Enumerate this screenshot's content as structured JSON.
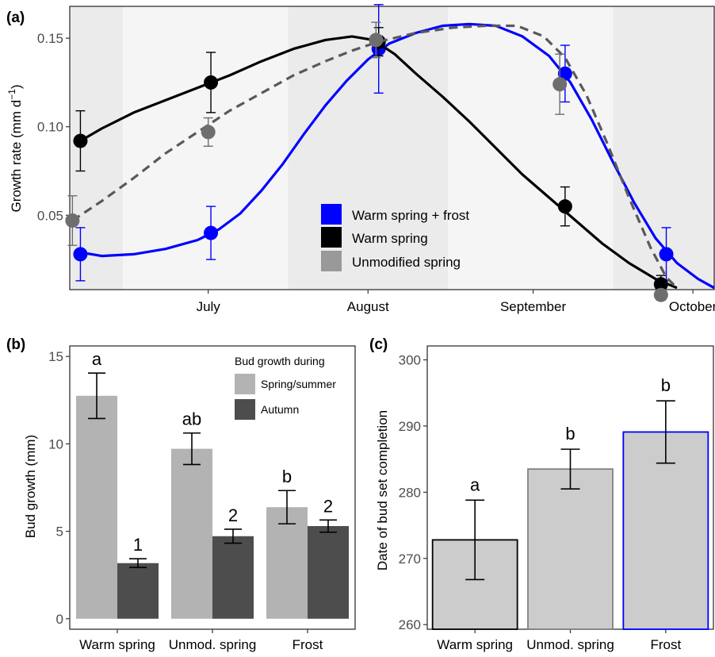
{
  "colors": {
    "warm_frost": "#0000ff",
    "warm": "#000000",
    "unmodified_line": "#595959",
    "unmodified_point": "#6e6e6e",
    "unmodified_legend": "#999999",
    "bar_spring": "#b3b3b3",
    "bar_autumn": "#4d4d4d",
    "bar_c_fill": "#cccccc",
    "band_dark": "#ebebeb",
    "band_light": "#f5f5f5"
  },
  "chart_data": [
    {
      "panel": "(a)",
      "type": "line",
      "title": "",
      "xlabel": "",
      "ylabel": "Growth rate (mm d",
      "ylabel_sup": "−1",
      "ylabel_end": ")",
      "x_tick_labels": [
        "July",
        "August",
        "September",
        "October"
      ],
      "x_ticks_days": [
        26,
        56,
        87,
        117
      ],
      "xlim_days": [
        0,
        121
      ],
      "ylim": [
        0.008,
        0.168
      ],
      "y_ticks": [
        "0.05",
        "0.10",
        "0.15"
      ],
      "y_tick_values": [
        0.05,
        0.1,
        0.15
      ],
      "background_bands": "alternating monthly shading",
      "legend_position": "lower-center",
      "series": [
        {
          "name": "Warm spring + frost",
          "color_key": "warm_frost",
          "style": "solid",
          "points": [
            {
              "x": 2.0,
              "y": 0.028,
              "err": 0.015
            },
            {
              "x": 26.5,
              "y": 0.04,
              "err": 0.015
            },
            {
              "x": 58.0,
              "y": 0.144,
              "err": 0.025
            },
            {
              "x": 93.0,
              "y": 0.13,
              "err": 0.016
            },
            {
              "x": 112.0,
              "y": 0.028,
              "err": 0.015
            }
          ],
          "curve": [
            [
              2,
              0.029
            ],
            [
              6,
              0.027
            ],
            [
              12,
              0.028
            ],
            [
              18,
              0.031
            ],
            [
              24,
              0.036
            ],
            [
              28,
              0.042
            ],
            [
              32,
              0.051
            ],
            [
              36,
              0.064
            ],
            [
              40,
              0.079
            ],
            [
              44,
              0.096
            ],
            [
              48,
              0.112
            ],
            [
              52,
              0.126
            ],
            [
              56,
              0.138
            ],
            [
              60,
              0.147
            ],
            [
              65,
              0.153
            ],
            [
              70,
              0.157
            ],
            [
              75,
              0.158
            ],
            [
              80,
              0.157
            ],
            [
              85,
              0.151
            ],
            [
              90,
              0.14
            ],
            [
              94,
              0.125
            ],
            [
              98,
              0.104
            ],
            [
              102,
              0.08
            ],
            [
              106,
              0.057
            ],
            [
              110,
              0.037
            ],
            [
              114,
              0.023
            ],
            [
              118,
              0.014
            ],
            [
              121,
              0.009
            ]
          ]
        },
        {
          "name": "Warm spring",
          "color_key": "warm",
          "style": "solid",
          "points": [
            {
              "x": 2.0,
              "y": 0.092,
              "err": 0.017
            },
            {
              "x": 26.5,
              "y": 0.125,
              "err": 0.017
            },
            {
              "x": 58.0,
              "y": 0.148,
              "err": 0.008
            },
            {
              "x": 93.0,
              "y": 0.055,
              "err": 0.011
            },
            {
              "x": 111.0,
              "y": 0.011,
              "err": 0.005
            }
          ],
          "curve": [
            [
              2,
              0.092
            ],
            [
              6,
              0.099
            ],
            [
              12,
              0.108
            ],
            [
              18,
              0.115
            ],
            [
              24,
              0.122
            ],
            [
              30,
              0.129
            ],
            [
              36,
              0.137
            ],
            [
              42,
              0.144
            ],
            [
              48,
              0.149
            ],
            [
              53,
              0.151
            ],
            [
              57,
              0.149
            ],
            [
              61,
              0.141
            ],
            [
              65,
              0.13
            ],
            [
              70,
              0.117
            ],
            [
              75,
              0.103
            ],
            [
              80,
              0.088
            ],
            [
              85,
              0.073
            ],
            [
              90,
              0.06
            ],
            [
              95,
              0.047
            ],
            [
              100,
              0.034
            ],
            [
              105,
              0.023
            ],
            [
              110,
              0.014
            ],
            [
              114,
              0.009
            ]
          ]
        },
        {
          "name": "Unmodified spring",
          "color_key": "unmodified_line",
          "point_color_key": "unmodified_point",
          "legend_color_key": "unmodified_legend",
          "style": "dashed",
          "points": [
            {
              "x": 0.5,
              "y": 0.047,
              "err": 0.014
            },
            {
              "x": 26.0,
              "y": 0.097,
              "err": 0.008
            },
            {
              "x": 57.5,
              "y": 0.149,
              "err": 0.01
            },
            {
              "x": 92.0,
              "y": 0.124,
              "err": 0.017
            },
            {
              "x": 111.0,
              "y": 0.005,
              "err": 0.003
            }
          ],
          "curve": [
            [
              0.5,
              0.047
            ],
            [
              6,
              0.058
            ],
            [
              12,
              0.071
            ],
            [
              18,
              0.085
            ],
            [
              24,
              0.097
            ],
            [
              30,
              0.109
            ],
            [
              36,
              0.119
            ],
            [
              42,
              0.129
            ],
            [
              48,
              0.137
            ],
            [
              53,
              0.143
            ],
            [
              58,
              0.148
            ],
            [
              65,
              0.153
            ],
            [
              72,
              0.156
            ],
            [
              78,
              0.157
            ],
            [
              84,
              0.157
            ],
            [
              89,
              0.151
            ],
            [
              93,
              0.139
            ],
            [
              97,
              0.118
            ],
            [
              101,
              0.09
            ],
            [
              105,
              0.06
            ],
            [
              109,
              0.032
            ],
            [
              112,
              0.015
            ],
            [
              114,
              0.009
            ]
          ]
        }
      ]
    },
    {
      "panel": "(b)",
      "type": "bar",
      "title": "",
      "xlabel": "",
      "ylabel": "Bud growth (mm)",
      "categories": [
        "Warm spring",
        "Unmod. spring",
        "Frost"
      ],
      "ylim": [
        -0.6,
        15.6
      ],
      "y_ticks": [
        "0",
        "5",
        "10",
        "15"
      ],
      "y_tick_values": [
        0,
        5,
        10,
        15
      ],
      "legend_title": "Bud growth during",
      "legend_position": "top-right",
      "series": [
        {
          "name": "Spring/summer",
          "color_key": "bar_spring",
          "values": [
            12.75,
            9.72,
            6.38
          ],
          "err": [
            1.3,
            0.9,
            0.95
          ],
          "letters": [
            "a",
            "ab",
            "b"
          ]
        },
        {
          "name": "Autumn",
          "color_key": "bar_autumn",
          "values": [
            3.18,
            4.72,
            5.3
          ],
          "err": [
            0.25,
            0.4,
            0.35
          ],
          "letters": [
            "1",
            "2",
            "2"
          ]
        }
      ]
    },
    {
      "panel": "(c)",
      "type": "bar",
      "title": "",
      "xlabel": "",
      "ylabel": "Date of bud set completion",
      "categories": [
        "Warm spring",
        "Unmod. spring",
        "Frost"
      ],
      "ylim": [
        259.3,
        302.1
      ],
      "y_ticks": [
        "260",
        "270",
        "280",
        "290",
        "300"
      ],
      "y_tick_values": [
        260,
        270,
        280,
        290,
        300
      ],
      "values": [
        272.8,
        283.5,
        289.1
      ],
      "err": [
        6.0,
        3.0,
        4.7
      ],
      "letters": [
        "a",
        "b",
        "b"
      ],
      "outline_colors": [
        "#000000",
        "#808080",
        "#0000ff"
      ],
      "fill_color_key": "bar_c_fill"
    }
  ]
}
